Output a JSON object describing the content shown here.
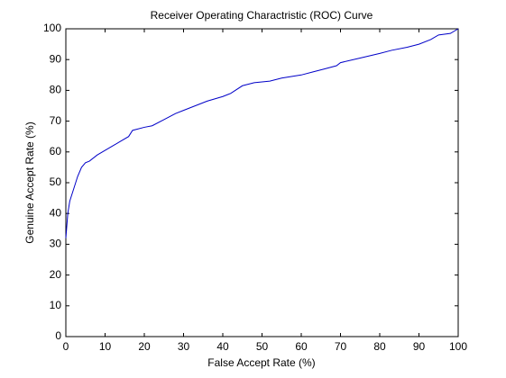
{
  "chart_data": {
    "type": "line",
    "title": "Receiver Operating Charactristic (ROC) Curve",
    "x_label": "False Accept Rate (%)",
    "y_label": "Genuine Accept Rate (%)",
    "series": [
      {
        "name": "ROC",
        "color": "#0000c8",
        "x": [
          0,
          0.5,
          1,
          2,
          3,
          4,
          5,
          6,
          8,
          10,
          12,
          14,
          16,
          17,
          20,
          22,
          25,
          28,
          30,
          33,
          36,
          40,
          42,
          45,
          48,
          52,
          55,
          60,
          63,
          66,
          69,
          70,
          75,
          80,
          83,
          87,
          90,
          93,
          95,
          98,
          100
        ],
        "values": [
          32,
          40,
          44,
          48,
          52,
          55,
          56.5,
          57,
          59,
          60.5,
          62,
          63.5,
          65,
          67,
          68,
          68.5,
          70.5,
          72.5,
          73.5,
          75,
          76.5,
          78,
          79,
          81.5,
          82.5,
          83,
          84,
          85,
          86,
          87,
          88,
          89,
          90.5,
          92,
          93,
          94,
          95,
          96.5,
          98,
          98.5,
          100
        ]
      }
    ],
    "xlim": [
      0,
      100
    ],
    "ylim": [
      0,
      100
    ],
    "xticks": [
      0,
      10,
      20,
      30,
      40,
      50,
      60,
      70,
      80,
      90,
      100
    ],
    "yticks": [
      0,
      10,
      20,
      30,
      40,
      50,
      60,
      70,
      80,
      90,
      100
    ],
    "grid": false
  }
}
